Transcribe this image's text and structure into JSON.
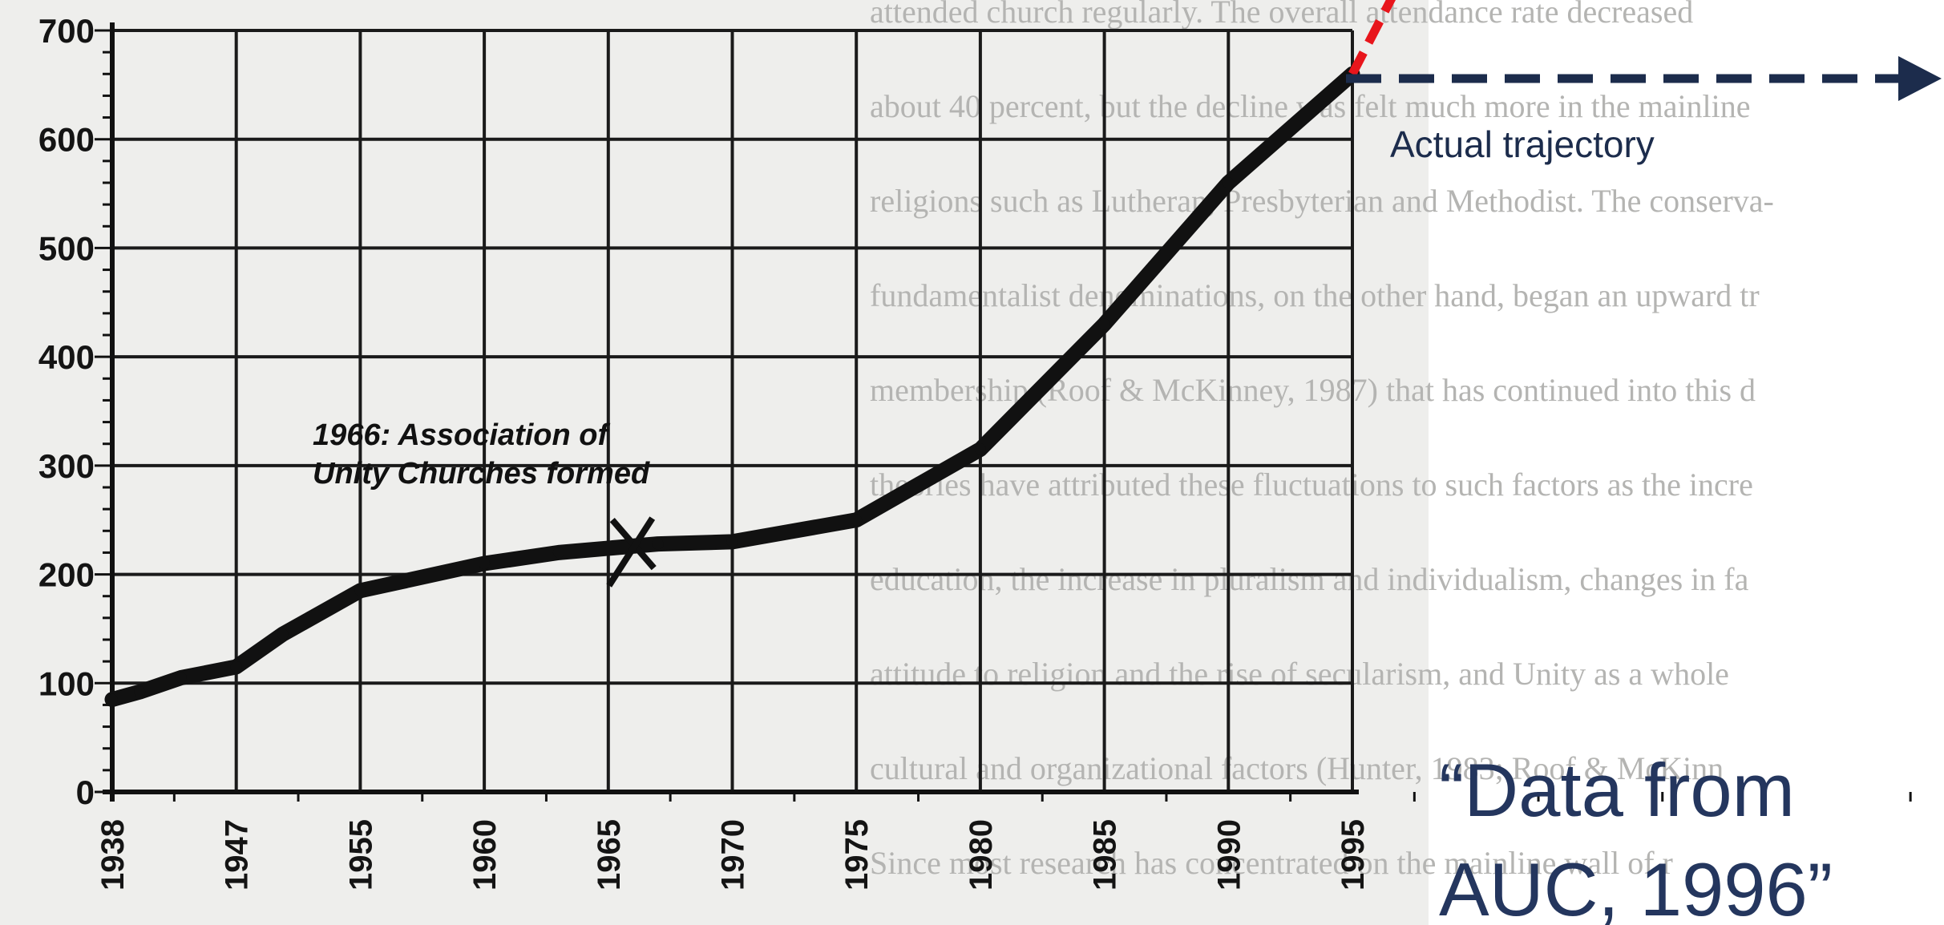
{
  "chart_data": {
    "type": "line",
    "xlabel": "",
    "ylabel": "",
    "ylim": [
      0,
      700
    ],
    "yticks": [
      0,
      100,
      200,
      300,
      400,
      500,
      600,
      700
    ],
    "xticks": [
      1938,
      1947,
      1955,
      1960,
      1965,
      1970,
      1975,
      1980,
      1985,
      1990,
      1995
    ],
    "grid": true,
    "series": [
      {
        "points": [
          {
            "x": 1938,
            "y": 85
          },
          {
            "x": 1940,
            "y": 92
          },
          {
            "x": 1943,
            "y": 105
          },
          {
            "x": 1947,
            "y": 115
          },
          {
            "x": 1950,
            "y": 145
          },
          {
            "x": 1955,
            "y": 185
          },
          {
            "x": 1960,
            "y": 210
          },
          {
            "x": 1963,
            "y": 220
          },
          {
            "x": 1967,
            "y": 228
          },
          {
            "x": 1970,
            "y": 230
          },
          {
            "x": 1975,
            "y": 250
          },
          {
            "x": 1980,
            "y": 315
          },
          {
            "x": 1985,
            "y": 430
          },
          {
            "x": 1990,
            "y": 560
          },
          {
            "x": 1995,
            "y": 660
          }
        ]
      }
    ],
    "annotation_event": {
      "x": 1966,
      "y": 228,
      "lines": [
        "1966: Association of",
        "Unity Churches formed"
      ]
    },
    "overlay": {
      "red_trend_color": "#e8151b",
      "actual_arrow_color": "#1c2c4c",
      "actual_label": "Actual trajectory",
      "source_quote": [
        "“Data from",
        "AUC, 1996”"
      ]
    }
  },
  "background_text_lines": [
    "attended church regularly. The overall attendance rate decreased",
    "about 40 percent, but the decline was felt much more in the mainline",
    "religions such as Lutheran, Presbyterian and Methodist. The conserva-",
    "fundamentalist denominations, on the other hand, began an upward tr",
    "membership (Roof & McKinney, 1987) that has continued into this d",
    "theories have attributed these fluctuations to such factors as the incre",
    "education, the increase in pluralism and individualism, changes in fa",
    "attitude to religion and the rise of secularism, and Unity as a whole",
    "cultural and organizational factors (Hunter, 1983; Roof & McKinn",
    "Since most research has concentrated on the mainline wall of r"
  ]
}
